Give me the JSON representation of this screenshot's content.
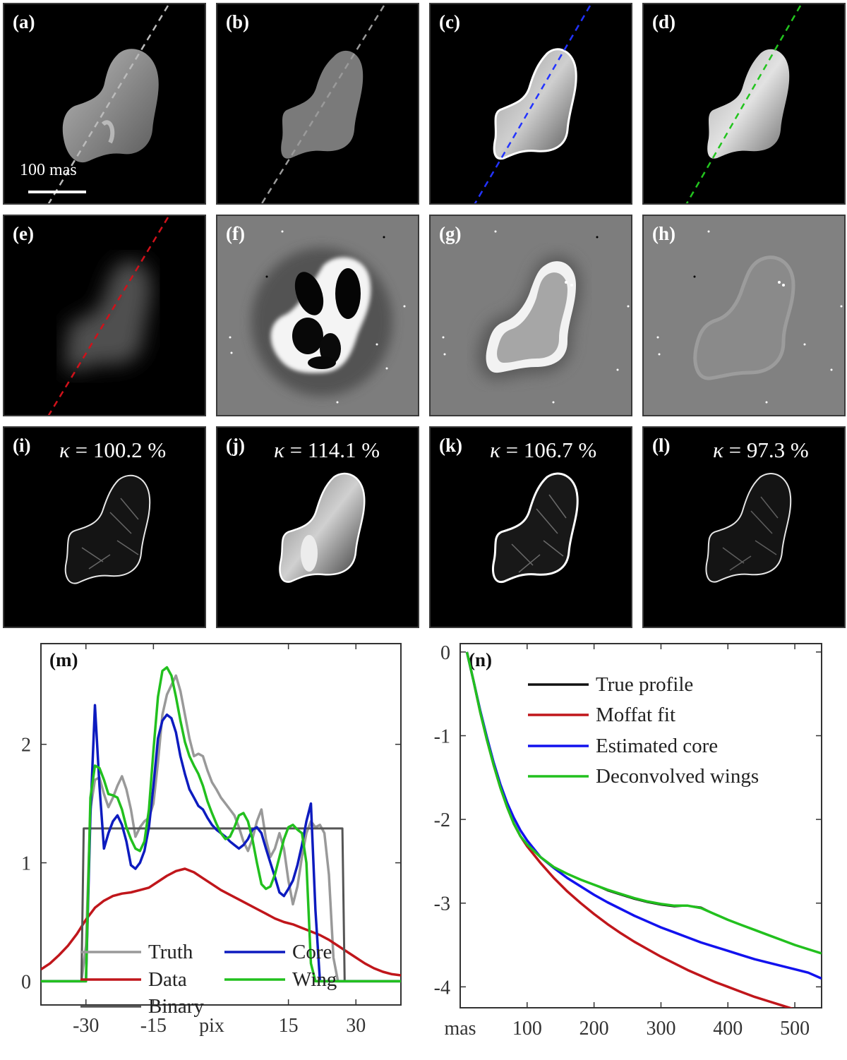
{
  "panels": {
    "a": {
      "label": "(a)",
      "scalebar": "100 mas"
    },
    "b": {
      "label": "(b)"
    },
    "c": {
      "label": "(c)"
    },
    "d": {
      "label": "(d)"
    },
    "e": {
      "label": "(e)"
    },
    "f": {
      "label": "(f)"
    },
    "g": {
      "label": "(g)"
    },
    "h": {
      "label": "(h)"
    },
    "i": {
      "label": "(i)",
      "kappa": "100.2"
    },
    "j": {
      "label": "(j)",
      "kappa": "114.1"
    },
    "k": {
      "label": "(k)",
      "kappa": "106.7"
    },
    "l": {
      "label": "(l)",
      "kappa": "97.3"
    }
  },
  "kappa_symbol": "κ",
  "kappa_unit": "%",
  "colors": {
    "truth": "#999999",
    "data": "#c0161b",
    "binary": "#555555",
    "core": "#0d1bbf",
    "wing": "#22c01e",
    "true_profile": "#111111",
    "moffat": "#c0161b",
    "est_core": "#1212ee",
    "deconv_wings": "#22c01e",
    "line_a": "#bbbbbb",
    "line_c": "#2233ff",
    "line_d": "#22c41e",
    "line_e": "#d0111a"
  },
  "chart_data": [
    {
      "panel": "(m)",
      "type": "line",
      "xlabel": "pix",
      "xlim": [
        -40,
        40
      ],
      "ylim": [
        -0.2,
        2.85
      ],
      "xticks": [
        "-30",
        "-15",
        "15",
        "30"
      ],
      "xtick_values": [
        -30,
        -15,
        15,
        30
      ],
      "yticks": [
        "0",
        "1",
        "2"
      ],
      "ytick_values": [
        0,
        1,
        2
      ],
      "legend_position": "bottom",
      "series": [
        {
          "name": "Truth",
          "x": [
            -40,
            -31,
            -30,
            -29,
            -28,
            -27,
            -26,
            -25,
            -24,
            -23,
            -22,
            -21,
            -20,
            -19,
            -18,
            -17,
            -16,
            -15,
            -14,
            -13,
            -12,
            -11,
            -10,
            -9,
            -8,
            -7,
            -6,
            -5,
            -4,
            -3,
            -2,
            -1,
            0,
            1,
            2,
            3,
            4,
            5,
            6,
            7,
            8,
            9,
            10,
            11,
            12,
            13,
            14,
            15,
            16,
            17,
            18,
            19,
            20,
            21,
            22,
            23,
            24,
            25,
            26,
            27,
            28,
            29,
            30,
            31,
            32,
            33,
            34,
            40
          ],
          "y": [
            0,
            0,
            0.3,
            1.45,
            1.7,
            1.72,
            1.58,
            1.47,
            1.55,
            1.65,
            1.73,
            1.62,
            1.45,
            1.22,
            1.3,
            1.35,
            1.38,
            1.5,
            1.85,
            2.25,
            2.42,
            2.5,
            2.58,
            2.45,
            2.25,
            2.05,
            1.9,
            1.92,
            1.9,
            1.78,
            1.68,
            1.62,
            1.55,
            1.5,
            1.45,
            1.4,
            1.3,
            1.18,
            1.1,
            1.2,
            1.35,
            1.45,
            1.2,
            1.05,
            1.12,
            1.25,
            1.12,
            0.85,
            0.65,
            0.8,
            1.05,
            1.25,
            1.35,
            1.3,
            1.32,
            1.25,
            0.9,
            0.2,
            0,
            0,
            0,
            0,
            0,
            0,
            0,
            0,
            0,
            0
          ]
        },
        {
          "name": "Data",
          "x": [
            -40,
            -38,
            -36,
            -34,
            -32,
            -30,
            -28,
            -26,
            -24,
            -22,
            -20,
            -18,
            -16,
            -14,
            -12,
            -10,
            -8,
            -6,
            -4,
            -2,
            0,
            2,
            4,
            6,
            8,
            10,
            12,
            14,
            16,
            18,
            20,
            22,
            24,
            26,
            28,
            30,
            32,
            34,
            36,
            38,
            40
          ],
          "y": [
            0.1,
            0.15,
            0.22,
            0.3,
            0.4,
            0.52,
            0.62,
            0.68,
            0.72,
            0.74,
            0.75,
            0.77,
            0.79,
            0.84,
            0.89,
            0.93,
            0.95,
            0.92,
            0.87,
            0.82,
            0.77,
            0.73,
            0.69,
            0.65,
            0.61,
            0.57,
            0.53,
            0.5,
            0.48,
            0.45,
            0.42,
            0.39,
            0.35,
            0.3,
            0.25,
            0.2,
            0.15,
            0.11,
            0.08,
            0.06,
            0.05
          ]
        },
        {
          "name": "Binary",
          "x": [
            -40,
            -31,
            -30.5,
            27,
            27.5,
            40
          ],
          "y": [
            0,
            0,
            1.29,
            1.29,
            0,
            0
          ]
        },
        {
          "name": "Core",
          "x": [
            -40,
            -30,
            -29,
            -28,
            -27,
            -26,
            -25,
            -24,
            -23,
            -22,
            -21,
            -20,
            -19,
            -18,
            -17,
            -16,
            -15,
            -14,
            -13,
            -12,
            -11,
            -10,
            -9,
            -8,
            -7,
            -6,
            -5,
            -4,
            -3,
            -2,
            -1,
            0,
            1,
            2,
            3,
            4,
            5,
            6,
            7,
            8,
            9,
            10,
            11,
            12,
            13,
            14,
            15,
            16,
            17,
            18,
            19,
            20,
            21,
            22,
            23,
            24,
            25,
            26,
            27,
            28,
            29,
            30,
            31,
            32,
            40
          ],
          "y": [
            0,
            0,
            1.4,
            2.33,
            1.65,
            1.12,
            1.25,
            1.35,
            1.4,
            1.32,
            1.18,
            0.98,
            0.95,
            1.0,
            1.1,
            1.3,
            1.65,
            2.05,
            2.2,
            2.25,
            2.22,
            2.1,
            1.9,
            1.75,
            1.62,
            1.55,
            1.48,
            1.45,
            1.38,
            1.32,
            1.28,
            1.25,
            1.22,
            1.18,
            1.15,
            1.12,
            1.15,
            1.2,
            1.28,
            1.3,
            1.25,
            1.12,
            1.0,
            0.88,
            0.75,
            0.72,
            0.78,
            0.85,
            0.98,
            1.15,
            1.35,
            1.5,
            0.6,
            0,
            0,
            0,
            0,
            0,
            0,
            0,
            0,
            0,
            0,
            0,
            0
          ]
        },
        {
          "name": "Wing",
          "x": [
            -40,
            -30,
            -29,
            -28,
            -27,
            -26,
            -25,
            -24,
            -23,
            -22,
            -21,
            -20,
            -19,
            -18,
            -17,
            -16,
            -15,
            -14,
            -13,
            -12,
            -11,
            -10,
            -9,
            -8,
            -7,
            -6,
            -5,
            -4,
            -3,
            -2,
            -1,
            0,
            1,
            2,
            3,
            4,
            5,
            6,
            7,
            8,
            9,
            10,
            11,
            12,
            13,
            14,
            15,
            16,
            17,
            18,
            19,
            20,
            21,
            22,
            23,
            24,
            25,
            26,
            27,
            28,
            29,
            30,
            31,
            32,
            33,
            34,
            40
          ],
          "y": [
            0,
            0,
            1.55,
            1.82,
            1.8,
            1.7,
            1.58,
            1.57,
            1.55,
            1.45,
            1.3,
            1.2,
            1.12,
            1.1,
            1.18,
            1.45,
            1.95,
            2.4,
            2.62,
            2.65,
            2.58,
            2.4,
            2.2,
            2.02,
            1.9,
            1.82,
            1.75,
            1.65,
            1.52,
            1.42,
            1.33,
            1.25,
            1.2,
            1.22,
            1.3,
            1.4,
            1.42,
            1.35,
            1.2,
            1.0,
            0.82,
            0.78,
            0.8,
            0.9,
            1.05,
            1.2,
            1.3,
            1.32,
            1.28,
            1.25,
            1.0,
            0.15,
            0,
            0,
            0,
            0,
            0,
            0,
            0,
            0,
            0,
            0,
            0,
            0,
            0,
            0,
            0
          ]
        }
      ]
    },
    {
      "panel": "(n)",
      "type": "line",
      "xlabel": "mas",
      "xlim": [
        0,
        540
      ],
      "ylim": [
        -4.25,
        0.1
      ],
      "xticks": [
        "100",
        "200",
        "300",
        "400",
        "500"
      ],
      "xtick_values": [
        100,
        200,
        300,
        400,
        500
      ],
      "yticks": [
        "0",
        "-1",
        "-2",
        "-3",
        "-4"
      ],
      "ytick_values": [
        0,
        -1,
        -2,
        -3,
        -4
      ],
      "legend_position": "top-right",
      "series": [
        {
          "name": "True profile",
          "x": [
            10,
            20,
            30,
            40,
            50,
            60,
            70,
            80,
            90,
            100,
            120,
            140,
            160,
            180,
            200,
            220,
            240,
            260,
            280,
            300,
            320,
            340,
            360,
            380,
            400,
            420,
            440,
            460,
            480,
            500,
            520,
            540
          ],
          "y": [
            0,
            -0.35,
            -0.72,
            -1.05,
            -1.35,
            -1.62,
            -1.85,
            -2.05,
            -2.2,
            -2.3,
            -2.45,
            -2.57,
            -2.65,
            -2.72,
            -2.78,
            -2.85,
            -2.9,
            -2.95,
            -2.99,
            -3.02,
            -3.04,
            -3.03,
            -3.05,
            -3.13,
            -3.2,
            -3.26,
            -3.32,
            -3.38,
            -3.44,
            -3.5,
            -3.55,
            -3.6
          ]
        },
        {
          "name": "Moffat fit",
          "x": [
            10,
            20,
            30,
            40,
            50,
            60,
            70,
            80,
            90,
            100,
            120,
            140,
            160,
            180,
            200,
            220,
            240,
            260,
            280,
            300,
            320,
            340,
            360,
            380,
            400,
            420,
            440,
            460,
            480,
            500,
            520,
            540
          ],
          "y": [
            0,
            -0.35,
            -0.72,
            -1.05,
            -1.35,
            -1.62,
            -1.85,
            -2.05,
            -2.2,
            -2.32,
            -2.52,
            -2.7,
            -2.86,
            -3.0,
            -3.13,
            -3.25,
            -3.36,
            -3.46,
            -3.55,
            -3.64,
            -3.72,
            -3.8,
            -3.87,
            -3.94,
            -4.0,
            -4.06,
            -4.12,
            -4.17,
            -4.22,
            -4.27,
            -4.32,
            -4.36
          ]
        },
        {
          "name": "Estimated core",
          "x": [
            10,
            20,
            30,
            40,
            50,
            60,
            70,
            80,
            90,
            100,
            120,
            140,
            160,
            180,
            200,
            220,
            240,
            260,
            280,
            300,
            320,
            340,
            360,
            380,
            400,
            420,
            440,
            460,
            480,
            500,
            520,
            540
          ],
          "y": [
            0,
            -0.35,
            -0.7,
            -1.02,
            -1.32,
            -1.58,
            -1.8,
            -1.98,
            -2.13,
            -2.25,
            -2.45,
            -2.58,
            -2.7,
            -2.8,
            -2.9,
            -2.99,
            -3.07,
            -3.15,
            -3.22,
            -3.29,
            -3.35,
            -3.41,
            -3.47,
            -3.52,
            -3.57,
            -3.62,
            -3.67,
            -3.71,
            -3.75,
            -3.79,
            -3.83,
            -3.9
          ]
        },
        {
          "name": "Deconvolved wings",
          "x": [
            10,
            20,
            30,
            40,
            50,
            60,
            70,
            80,
            90,
            100,
            120,
            140,
            160,
            180,
            200,
            220,
            240,
            260,
            280,
            300,
            320,
            340,
            360,
            380,
            400,
            420,
            440,
            460,
            480,
            500,
            520,
            540
          ],
          "y": [
            0,
            -0.35,
            -0.72,
            -1.05,
            -1.35,
            -1.62,
            -1.85,
            -2.05,
            -2.2,
            -2.3,
            -2.45,
            -2.57,
            -2.65,
            -2.72,
            -2.78,
            -2.84,
            -2.89,
            -2.94,
            -2.98,
            -3.01,
            -3.03,
            -3.03,
            -3.06,
            -3.13,
            -3.2,
            -3.26,
            -3.32,
            -3.38,
            -3.44,
            -3.5,
            -3.55,
            -3.6
          ]
        }
      ]
    }
  ]
}
